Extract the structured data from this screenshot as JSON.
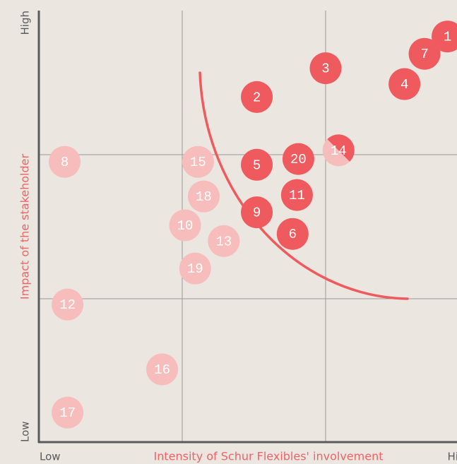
{
  "chart_data": {
    "type": "scatter",
    "x_label": "Intensity of Schur Flexibles' involvement",
    "y_label": "Impact of the stakeholder",
    "xlim": [
      0,
      3
    ],
    "ylim": [
      0,
      3
    ],
    "xticks": [
      {
        "value": 0,
        "label": "Low"
      },
      {
        "value": 3,
        "label": "High"
      }
    ],
    "yticks": [
      {
        "value": 0,
        "label": "Low"
      },
      {
        "value": 3,
        "label": "High"
      }
    ],
    "labels": [
      "1",
      "2",
      "3",
      "4",
      "5",
      "6",
      "7",
      "8",
      "9",
      "10",
      "11",
      "12",
      "13",
      "14",
      "15",
      "16",
      "17",
      "18",
      "19",
      "20"
    ],
    "x": [
      2.85,
      1.52,
      2.0,
      2.55,
      1.52,
      1.77,
      2.69,
      0.18,
      1.52,
      1.02,
      1.8,
      0.2,
      1.29,
      2.09,
      1.11,
      0.86,
      0.2,
      1.15,
      1.09,
      1.81
    ],
    "y": [
      2.82,
      2.4,
      2.6,
      2.49,
      1.93,
      1.45,
      2.7,
      1.95,
      1.6,
      1.51,
      1.72,
      0.96,
      1.4,
      2.03,
      1.95,
      0.51,
      0.21,
      1.71,
      1.21,
      1.97
    ],
    "colors": [
      "#ee5a5e",
      "#ee5a5e",
      "#ee5a5e",
      "#ee5a5e",
      "#ee5a5e",
      "#ee5a5e",
      "#ee5a5e",
      "#f7bdbd",
      "#ee5a5e",
      "#f7bdbd",
      "#ee5a5e",
      "#f7bdbd",
      "#f7bdbd",
      [
        "#f7bdbd",
        "#ee5a5e"
      ],
      "#f7bdbd",
      "#f7bdbd",
      "#f7bdbd",
      "#f7bdbd",
      "#f7bdbd",
      "#ee5a5e"
    ]
  }
}
